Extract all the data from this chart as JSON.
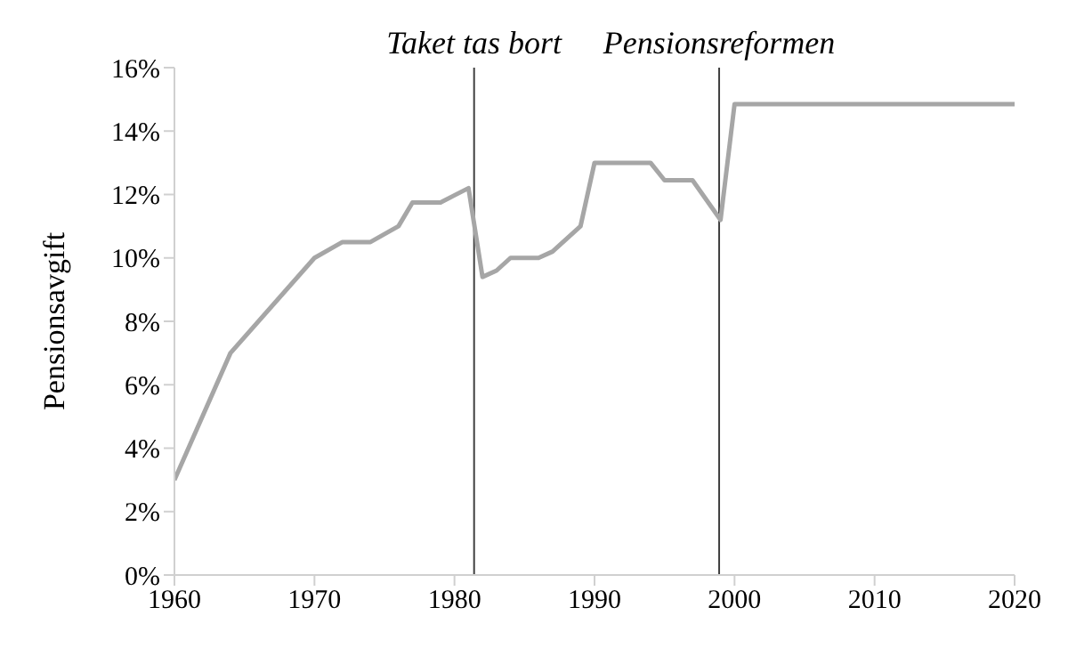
{
  "chart_data": {
    "type": "line",
    "ylabel": "Pensionsavgift",
    "x": [
      1960,
      1964,
      1970,
      1972,
      1974,
      1976,
      1977,
      1979,
      1981,
      1982,
      1983,
      1984,
      1986,
      1987,
      1989,
      1990,
      1994,
      1995,
      1997,
      1999,
      2000,
      2020
    ],
    "series": [
      {
        "color": "#a6a6a6",
        "values": [
          3.0,
          7.0,
          10.0,
          10.5,
          10.5,
          11.0,
          11.75,
          11.75,
          12.2,
          9.4,
          9.6,
          10.0,
          10.0,
          10.2,
          11.0,
          13.0,
          13.0,
          12.45,
          12.45,
          11.2,
          14.85,
          14.85
        ]
      }
    ],
    "xlim": [
      1960,
      2020
    ],
    "xticks": [
      1960,
      1970,
      1980,
      1990,
      2000,
      2010,
      2020
    ],
    "ylim": [
      0,
      16
    ],
    "yticks": [
      {
        "value": 0,
        "label": "0%"
      },
      {
        "value": 2,
        "label": "2%"
      },
      {
        "value": 4,
        "label": "4%"
      },
      {
        "value": 6,
        "label": "6%"
      },
      {
        "value": 8,
        "label": "8%"
      },
      {
        "value": 10,
        "label": "10%"
      },
      {
        "value": 12,
        "label": "12%"
      },
      {
        "value": 14,
        "label": "14%"
      },
      {
        "value": 16,
        "label": "16%"
      }
    ],
    "ref_lines": [
      {
        "axis": "x",
        "value": 1981.4,
        "label": "Taket tas bort",
        "color": "#404040"
      },
      {
        "axis": "x",
        "value": 1998.9,
        "label": "Pensionsreformen",
        "color": "#404040"
      }
    ],
    "grid": false,
    "legend": false,
    "marker": "none",
    "line_style": "solid"
  }
}
